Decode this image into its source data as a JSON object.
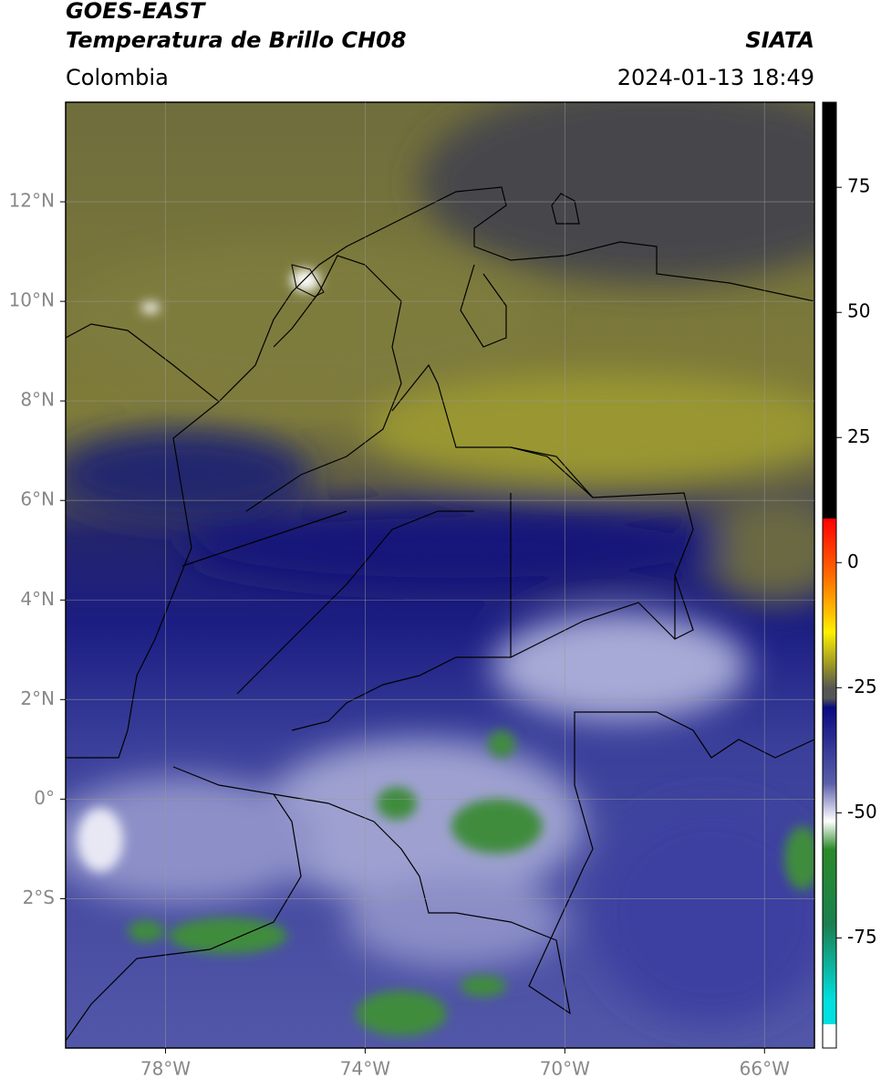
{
  "header": {
    "title": "GOES-EAST",
    "subtitle": "Temperatura de Brillo CH08",
    "source": "SIATA",
    "region": "Colombia",
    "datetime": "2024-01-13 18:49"
  },
  "map": {
    "xlim": [
      -80,
      -65
    ],
    "ylim": [
      -5,
      14
    ],
    "xticks": [
      {
        "value": -78,
        "label": "78°W"
      },
      {
        "value": -74,
        "label": "74°W"
      },
      {
        "value": -70,
        "label": "70°W"
      },
      {
        "value": -66,
        "label": "66°W"
      }
    ],
    "yticks": [
      {
        "value": 12,
        "label": "12°N"
      },
      {
        "value": 10,
        "label": "10°N"
      },
      {
        "value": 8,
        "label": "8°N"
      },
      {
        "value": 6,
        "label": "6°N"
      },
      {
        "value": 4,
        "label": "4°N"
      },
      {
        "value": 2,
        "label": "2°N"
      },
      {
        "value": 0,
        "label": "0°"
      },
      {
        "value": -2,
        "label": "2°S"
      }
    ],
    "grid": true
  },
  "colorbar": {
    "lim": [
      -97,
      92
    ],
    "ticks": [
      75,
      50,
      25,
      0,
      -25,
      -50,
      -75
    ]
  }
}
